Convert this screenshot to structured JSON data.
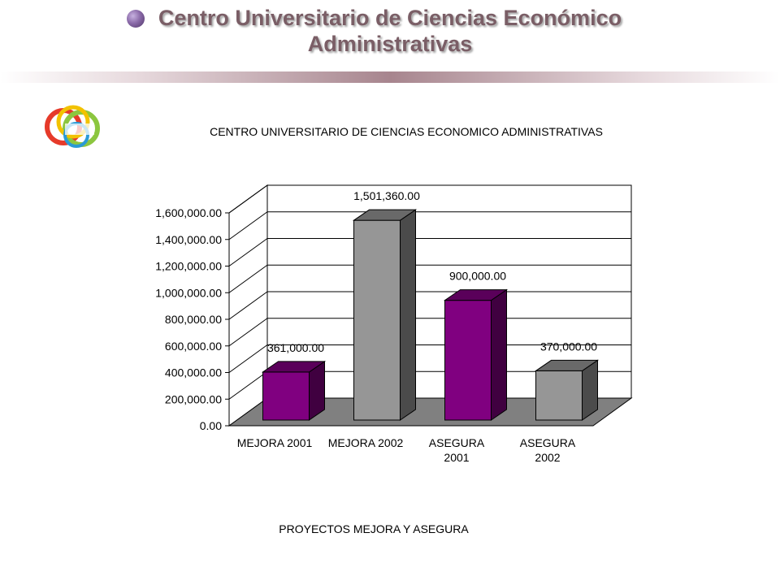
{
  "header": {
    "title_line1": "Centro Universitario de Ciencias Económico",
    "title_line2": "Administrativas"
  },
  "colors": {
    "header_text": "#7a5e66",
    "bar_purple": "#800080",
    "bar_gray": "#969696",
    "floor": "#808080"
  },
  "chart_data": {
    "type": "bar",
    "title": "CENTRO UNIVERSITARIO DE CIENCIAS ECONOMICO ADMINISTRATIVAS",
    "xlabel": "PROYECTOS MEJORA Y ASEGURA",
    "ylabel": "",
    "categories": [
      "MEJORA 2001",
      "MEJORA 2002",
      "ASEGURA 2001",
      "ASEGURA 2002"
    ],
    "values": [
      361000,
      1501360,
      900000,
      370000
    ],
    "data_labels": [
      "361,000.00",
      "1,501,360.00",
      "900,000.00",
      "370,000.00"
    ],
    "bar_colors": [
      "#800080",
      "#969696",
      "#800080",
      "#969696"
    ],
    "ylim": [
      0,
      1600000
    ],
    "y_ticks": [
      0,
      200000,
      400000,
      600000,
      800000,
      1000000,
      1200000,
      1400000,
      1600000
    ],
    "y_tick_labels": [
      "0.00",
      "200,000.00",
      "400,000.00",
      "600,000.00",
      "800,000.00",
      "1,000,000.00",
      "1,200,000.00",
      "1,400,000.00",
      "1,600,000.00"
    ],
    "grid": true,
    "style": "3d"
  }
}
